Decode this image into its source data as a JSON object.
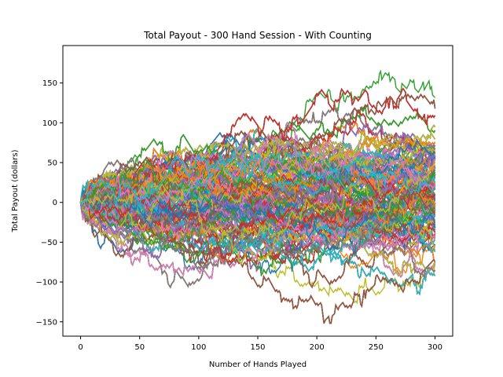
{
  "chart_data": {
    "type": "line",
    "title": "Total Payout - 300 Hand Session - With Counting",
    "xlabel": "Number of Hands Played",
    "ylabel": "Total Payout (dollars)",
    "xlim": [
      -15,
      315
    ],
    "ylim": [
      -168,
      197
    ],
    "x_ticks": [
      0,
      50,
      100,
      150,
      200,
      250,
      300
    ],
    "y_ticks": [
      -150,
      -100,
      -50,
      0,
      50,
      100,
      150
    ],
    "hands": 300,
    "series_count": 1000,
    "series_note": "Many simulated sessions, each a cumulative payout path over 300 hands starting at 0; final values span roughly -150 to 175.",
    "final_value_range": [
      -152,
      175
    ],
    "grid": false,
    "legend": "none",
    "colors": [
      "#1f77b4",
      "#ff7f0e",
      "#2ca02c",
      "#d62728",
      "#9467bd",
      "#8c564b",
      "#e377c2",
      "#7f7f7f",
      "#bcbd22",
      "#17becf"
    ]
  }
}
